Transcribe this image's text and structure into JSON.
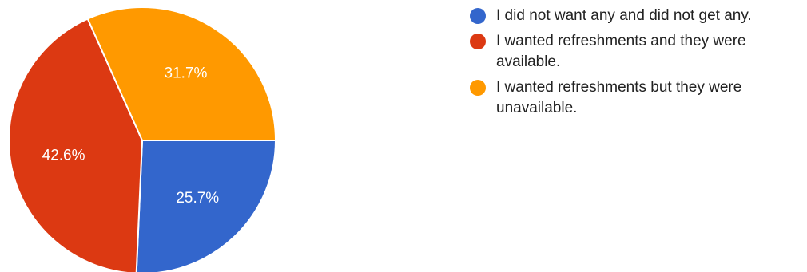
{
  "chart_data": {
    "type": "pie",
    "series": [
      {
        "label": "I did not want any and did not get any.",
        "value": 25.7,
        "display": "25.7%",
        "color": "#3366cc"
      },
      {
        "label": "I wanted refreshments and they were available.",
        "value": 42.6,
        "display": "42.6%",
        "color": "#dc3912"
      },
      {
        "label": "I wanted refreshments but they were unavailable.",
        "value": 31.7,
        "display": "31.7%",
        "color": "#ff9900"
      }
    ],
    "legend_position": "right"
  }
}
